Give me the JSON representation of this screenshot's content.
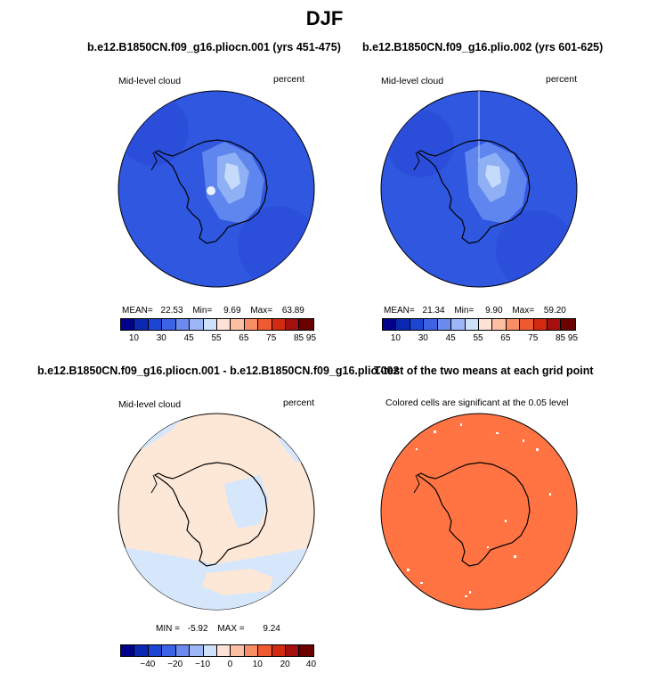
{
  "title": "DJF",
  "panels": [
    {
      "id": "p1",
      "title": "b.e12.B1850CN.f09_g16.pliocn.001 (yrs 451-475)",
      "left_label": "Mid-level cloud",
      "right_label": "percent",
      "stats": {
        "mean_label": "MEAN=",
        "mean": "22.53",
        "min_label": "Min=",
        "min": "9.69",
        "max_label": "Max=",
        "max": "63.89"
      },
      "colorbar": {
        "colors": [
          "#00008b",
          "#0b28b3",
          "#1d45d3",
          "#3d62e6",
          "#6b8bee",
          "#9db6f5",
          "#cfe0fb",
          "#fde3d5",
          "#fcbfa3",
          "#f88e66",
          "#ef5a31",
          "#d42a12",
          "#a50f0f",
          "#6b0000"
        ],
        "ticks": [
          "10",
          "30",
          "45",
          "55",
          "65",
          "75",
          "85",
          "95"
        ]
      }
    },
    {
      "id": "p2",
      "title": "b.e12.B1850CN.f09_g16.plio.002 (yrs 601-625)",
      "left_label": "Mid-level cloud",
      "right_label": "percent",
      "stats": {
        "mean_label": "MEAN=",
        "mean": "21.34",
        "min_label": "Min=",
        "min": "9.90",
        "max_label": "Max=",
        "max": "59.20"
      },
      "colorbar": {
        "colors": [
          "#00008b",
          "#0b28b3",
          "#1d45d3",
          "#3d62e6",
          "#6b8bee",
          "#9db6f5",
          "#cfe0fb",
          "#fde3d5",
          "#fcbfa3",
          "#f88e66",
          "#ef5a31",
          "#d42a12",
          "#a50f0f",
          "#6b0000"
        ],
        "ticks": [
          "10",
          "30",
          "45",
          "55",
          "65",
          "75",
          "85",
          "95"
        ]
      }
    },
    {
      "id": "p3",
      "title": "b.e12.B1850CN.f09_g16.pliocn.001 - b.e12.B1850CN.f09_g16.plio.002",
      "left_label": "Mid-level cloud",
      "right_label": "percent",
      "stats": {
        "min_label": "MIN =",
        "min": "-5.92",
        "max_label": "MAX =",
        "max": "9.24"
      },
      "colorbar": {
        "colors": [
          "#00008b",
          "#0b28b3",
          "#1d45d3",
          "#3d62e6",
          "#6b8bee",
          "#9db6f5",
          "#cfe0fb",
          "#fde3d5",
          "#fcbfa3",
          "#f88e66",
          "#ef5a31",
          "#d42a12",
          "#a50f0f",
          "#6b0000"
        ],
        "ticks": [
          "−40",
          "−20",
          "−10",
          "0",
          "10",
          "20",
          "40"
        ]
      }
    },
    {
      "id": "p4",
      "title": "T-test of the two means at each grid point",
      "left_label": "Colored cells are significant at the 0.05 level"
    }
  ],
  "map_colors": {
    "p1_ocean": "#2f57e0",
    "p2_ocean": "#2f57e0",
    "p3_ocean": "#fde8d8",
    "p3_blue": "#d6e6fb",
    "p4_fill": "#ff7442",
    "coast": "#000000"
  },
  "icons": [
    "map-disc",
    "coastline",
    "colorbar"
  ]
}
